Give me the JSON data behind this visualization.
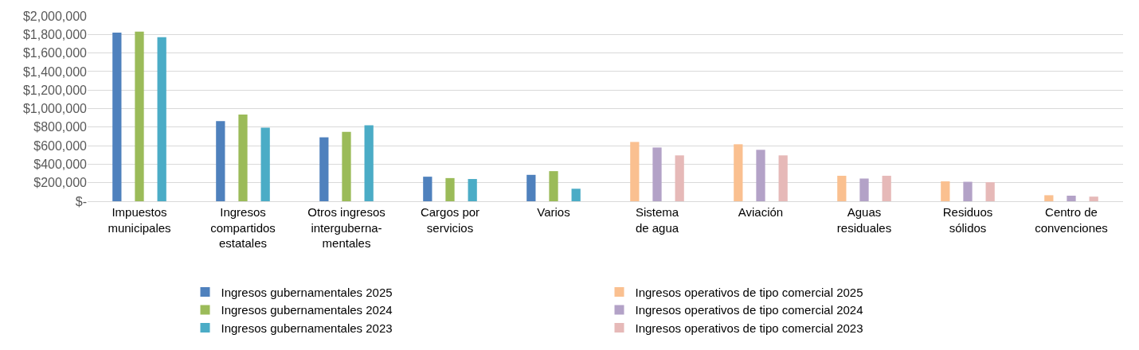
{
  "chart_data": {
    "type": "bar",
    "categories": [
      "Impuestos\nmunicipales",
      "Ingresos\ncompartidos\nestatales",
      "Otros ingresos\ninterguberna-\nmentales",
      "Cargos por\nservicios",
      "Varios",
      "Sistema\nde agua",
      "Aviación",
      "Aguas\nresiduales",
      "Residuos\nsólidos",
      "Centro de\nconvenciones"
    ],
    "series": [
      {
        "name": "Ingresos gubernamentales 2025",
        "color": "#4f81bd",
        "values": [
          1820000,
          865000,
          690000,
          265000,
          285000,
          null,
          null,
          null,
          null,
          null
        ]
      },
      {
        "name": "Ingresos gubernamentales 2024",
        "color": "#9bbb59",
        "values": [
          1830000,
          935000,
          750000,
          250000,
          325000,
          null,
          null,
          null,
          null,
          null
        ]
      },
      {
        "name": "Ingresos gubernamentales 2023",
        "color": "#4bacc6",
        "values": [
          1770000,
          795000,
          820000,
          240000,
          135000,
          null,
          null,
          null,
          null,
          null
        ]
      },
      {
        "name": "Ingresos operativos de tipo comercial 2025",
        "color": "#fac090",
        "values": [
          null,
          null,
          null,
          null,
          null,
          640000,
          615000,
          275000,
          215000,
          65000
        ]
      },
      {
        "name": "Ingresos operativos de tipo comercial 2024",
        "color": "#b3a2c7",
        "values": [
          null,
          null,
          null,
          null,
          null,
          580000,
          555000,
          245000,
          210000,
          60000
        ]
      },
      {
        "name": "Ingresos operativos de tipo comercial 2023",
        "color": "#e6b9b8",
        "values": [
          null,
          null,
          null,
          null,
          null,
          495000,
          495000,
          275000,
          205000,
          50000
        ]
      }
    ],
    "ylim": [
      0,
      2000000
    ],
    "yticks": [
      {
        "value": 0,
        "label": "$-"
      },
      {
        "value": 200000,
        "label": "$200,000"
      },
      {
        "value": 400000,
        "label": "$400,000"
      },
      {
        "value": 600000,
        "label": "$600,000"
      },
      {
        "value": 800000,
        "label": "$800,000"
      },
      {
        "value": 1000000,
        "label": "$1,000,000"
      },
      {
        "value": 1200000,
        "label": "$1,200,000"
      },
      {
        "value": 1400000,
        "label": "$1,400,000"
      },
      {
        "value": 1600000,
        "label": "$1,600,000"
      },
      {
        "value": 1800000,
        "label": "$1,800,000"
      },
      {
        "value": 2000000,
        "label": "$2,000,000"
      }
    ],
    "grid": "y",
    "legend": "bottom"
  }
}
